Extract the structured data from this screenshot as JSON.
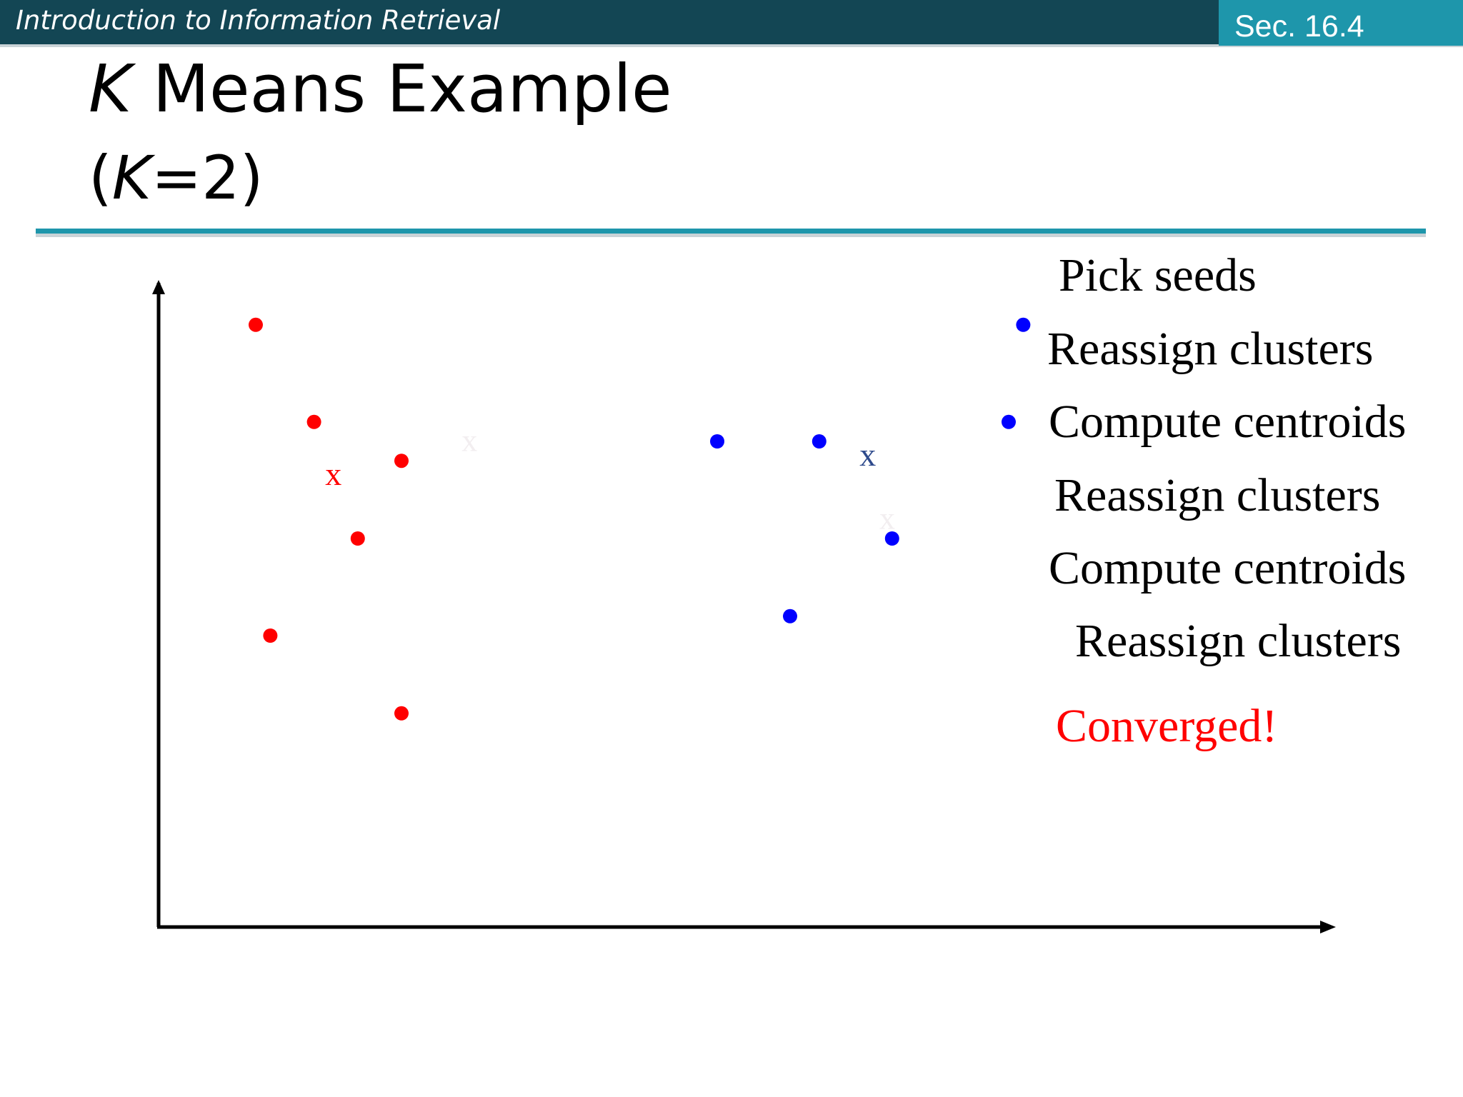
{
  "header": {
    "course_title": "Introduction to Information Retrieval",
    "section_label": "Sec. 16.4"
  },
  "slide": {
    "title_var": "K",
    "title_rest": " Means Example",
    "subtitle_open": "(",
    "subtitle_var": "K",
    "subtitle_rest": "=2)"
  },
  "steps": [
    "Pick seeds",
    "Reassign clusters",
    "Compute centroids",
    "Reassign clusters",
    "Compute centroids",
    "Reassign clusters",
    "Converged!"
  ],
  "colors": {
    "header_bar": "#134654",
    "accent": "#1e96ab",
    "cluster_red": "#ff0000",
    "cluster_blue": "#0000ff",
    "centroid_blue": "#2e4a8c",
    "converged": "#ff0000"
  },
  "centroid_marker": "x",
  "chart_data": {
    "type": "scatter",
    "xlabel": "",
    "ylabel": "",
    "series": [
      {
        "points": [
          [
            1.0,
            6.2
          ],
          [
            1.6,
            5.2
          ],
          [
            2.5,
            4.8
          ],
          [
            2.05,
            4.0
          ],
          [
            1.15,
            3.0
          ],
          [
            2.5,
            2.2
          ]
        ],
        "color": "#ff0000"
      },
      {
        "points": [
          [
            5.75,
            5.0
          ],
          [
            6.8,
            5.0
          ],
          [
            7.55,
            4.0
          ],
          [
            6.5,
            3.2
          ],
          [
            8.75,
            5.2
          ],
          [
            8.9,
            6.2
          ]
        ],
        "color": "#0000ff"
      }
    ],
    "centroids": [
      {
        "x": 1.8,
        "y": 4.55,
        "color": "#ff0000",
        "label": "x"
      },
      {
        "x": 7.3,
        "y": 4.75,
        "color": "#2e4a8c",
        "label": "x"
      }
    ],
    "ghost_centroids": [
      {
        "x": 3.2,
        "y": 4.9
      },
      {
        "x": 7.5,
        "y": 4.1
      }
    ]
  }
}
